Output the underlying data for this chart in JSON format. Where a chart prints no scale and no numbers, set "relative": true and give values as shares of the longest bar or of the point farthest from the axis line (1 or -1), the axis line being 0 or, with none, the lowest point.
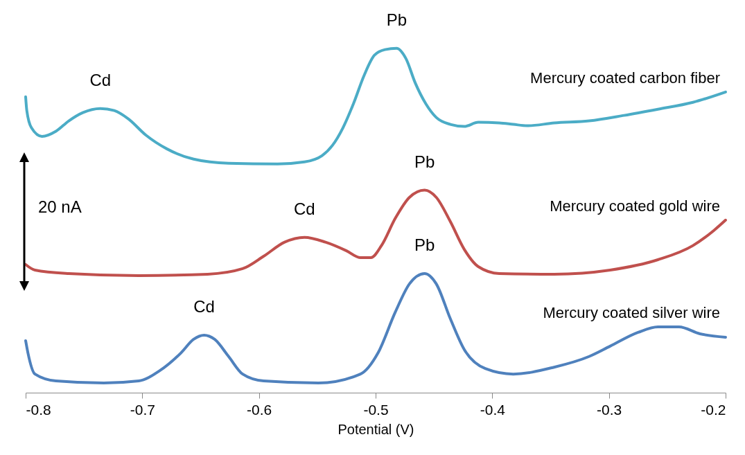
{
  "chart_data": {
    "type": "line",
    "relative": true,
    "xlabel": "Potential (V)",
    "xlim": [
      -0.8,
      -0.2
    ],
    "xticks": [
      -0.8,
      -0.7,
      -0.6,
      -0.5,
      -0.4,
      -0.3,
      -0.2
    ],
    "grid": false,
    "series": [
      {
        "name": "Mercury coated carbon fiber",
        "color": "#4bacc6",
        "x": [
          -0.8,
          -0.799,
          -0.795,
          -0.786,
          -0.774,
          -0.763,
          -0.751,
          -0.736,
          -0.724,
          -0.712,
          -0.697,
          -0.679,
          -0.656,
          -0.626,
          -0.584,
          -0.561,
          -0.546,
          -0.537,
          -0.528,
          -0.519,
          -0.51,
          -0.501,
          -0.492,
          -0.482,
          -0.474,
          -0.466,
          -0.457,
          -0.448,
          -0.436,
          -0.424,
          -0.412,
          -0.394,
          -0.382,
          -0.37,
          -0.347,
          -0.317,
          -0.287,
          -0.258,
          -0.228,
          -0.2
        ],
        "values": [
          0.859,
          0.819,
          0.769,
          0.744,
          0.759,
          0.789,
          0.813,
          0.825,
          0.819,
          0.795,
          0.748,
          0.708,
          0.678,
          0.666,
          0.664,
          0.67,
          0.688,
          0.718,
          0.769,
          0.839,
          0.92,
          0.98,
          0.996,
          1.0,
          0.97,
          0.899,
          0.839,
          0.799,
          0.779,
          0.773,
          0.785,
          0.783,
          0.779,
          0.775,
          0.783,
          0.789,
          0.805,
          0.823,
          0.843,
          0.873
        ]
      },
      {
        "name": "Mercury coated gold wire",
        "color": "#c0504d",
        "x": [
          -0.8,
          -0.792,
          -0.763,
          -0.703,
          -0.644,
          -0.614,
          -0.596,
          -0.578,
          -0.561,
          -0.543,
          -0.525,
          -0.513,
          -0.504,
          -0.495,
          -0.483,
          -0.471,
          -0.458,
          -0.448,
          -0.436,
          -0.424,
          -0.412,
          -0.394,
          -0.347,
          -0.299,
          -0.258,
          -0.228,
          -0.21,
          -0.2
        ],
        "values": [
          0.372,
          0.356,
          0.346,
          0.34,
          0.344,
          0.36,
          0.396,
          0.437,
          0.451,
          0.437,
          0.412,
          0.392,
          0.392,
          0.427,
          0.507,
          0.567,
          0.588,
          0.567,
          0.497,
          0.416,
          0.366,
          0.346,
          0.344,
          0.356,
          0.386,
          0.427,
          0.471,
          0.501
        ]
      },
      {
        "name": "Mercury coated silver wire",
        "color": "#4f81bd",
        "x": [
          -0.8,
          -0.798,
          -0.792,
          -0.774,
          -0.733,
          -0.703,
          -0.685,
          -0.667,
          -0.656,
          -0.647,
          -0.638,
          -0.626,
          -0.614,
          -0.596,
          -0.549,
          -0.513,
          -0.498,
          -0.483,
          -0.471,
          -0.458,
          -0.448,
          -0.436,
          -0.424,
          -0.406,
          -0.382,
          -0.347,
          -0.317,
          -0.299,
          -0.275,
          -0.258,
          -0.24,
          -0.222,
          -0.2
        ],
        "values": [
          0.151,
          0.115,
          0.054,
          0.034,
          0.028,
          0.034,
          0.064,
          0.115,
          0.155,
          0.167,
          0.155,
          0.105,
          0.054,
          0.034,
          0.028,
          0.054,
          0.115,
          0.235,
          0.316,
          0.346,
          0.316,
          0.215,
          0.125,
          0.07,
          0.054,
          0.074,
          0.105,
          0.135,
          0.175,
          0.191,
          0.191,
          0.171,
          0.161
        ]
      }
    ],
    "annotations": [
      {
        "text": "Cd",
        "x": -0.736,
        "y": 0.825
      },
      {
        "text": "Pb",
        "x": -0.482,
        "y": 1.0
      },
      {
        "text": "Cd",
        "x": -0.561,
        "y": 0.451
      },
      {
        "text": "Pb",
        "x": -0.458,
        "y": 0.588
      },
      {
        "text": "Cd",
        "x": -0.647,
        "y": 0.167
      },
      {
        "text": "Pb",
        "x": -0.458,
        "y": 0.346
      },
      "20 nA"
    ]
  }
}
